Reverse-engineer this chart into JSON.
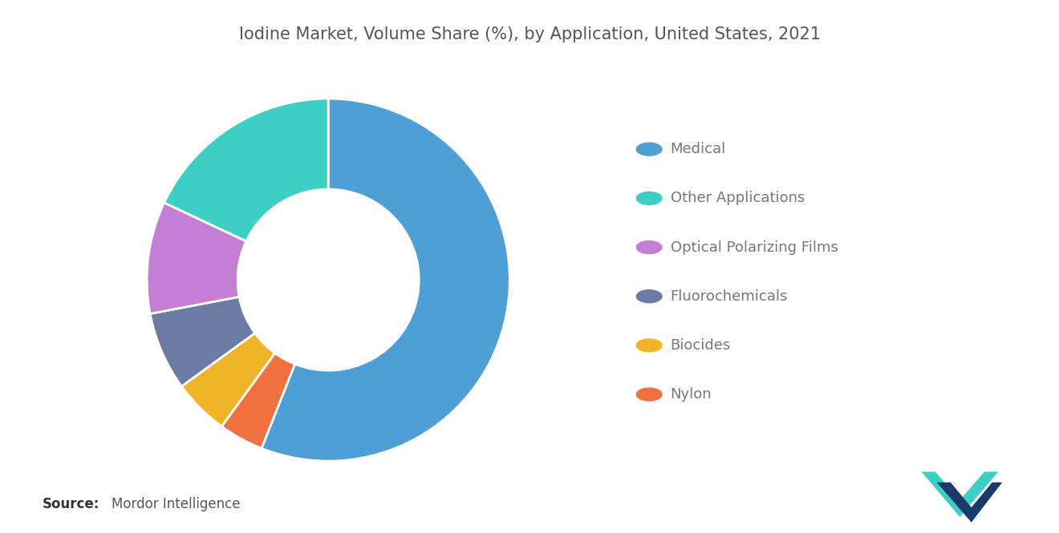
{
  "title": "Iodine Market, Volume Share (%), by Application, United States, 2021",
  "segments": [
    {
      "label": "Medical",
      "value": 56,
      "color": "#4D9FD6"
    },
    {
      "label": "Nylon",
      "value": 4,
      "color": "#F07040"
    },
    {
      "label": "Biocides",
      "value": 5,
      "color": "#F0B429"
    },
    {
      "label": "Fluorochemicals",
      "value": 7,
      "color": "#6B7BA4"
    },
    {
      "label": "Optical Polarizing Films",
      "value": 10,
      "color": "#C47FD5"
    },
    {
      "label": "Other Applications",
      "value": 18,
      "color": "#3DCEC4"
    }
  ],
  "legend_order": [
    "Medical",
    "Other Applications",
    "Optical Polarizing Films",
    "Fluorochemicals",
    "Biocides",
    "Nylon"
  ],
  "source_label": "Source:",
  "source_text": "Mordor Intelligence",
  "background_color": "#FFFFFF",
  "title_color": "#555555",
  "legend_text_color": "#777777",
  "title_fontsize": 15,
  "legend_fontsize": 13,
  "source_fontsize": 12
}
